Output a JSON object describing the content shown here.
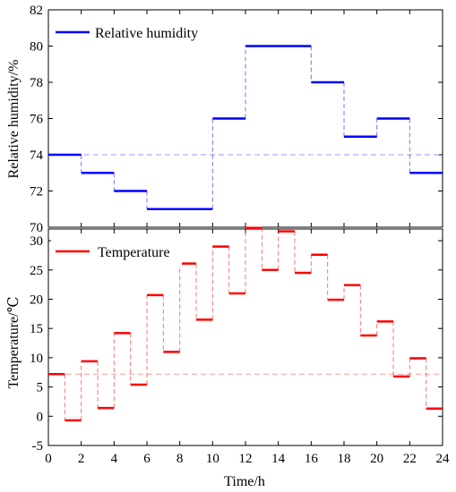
{
  "chart_data": [
    {
      "type": "line",
      "step": true,
      "ylabel": "Relative humidity/%",
      "xlim": [
        0,
        24
      ],
      "ylim": [
        70,
        82
      ],
      "yticks": [
        70,
        72,
        74,
        76,
        78,
        80,
        82
      ],
      "grid": false,
      "legend_position": "top-left",
      "series": [
        {
          "name": "Relative humidity",
          "color": "#0000ff",
          "segments": [
            {
              "x0": 0,
              "x1": 2,
              "y": 74
            },
            {
              "x0": 2,
              "x1": 4,
              "y": 73
            },
            {
              "x0": 4,
              "x1": 6,
              "y": 72
            },
            {
              "x0": 6,
              "x1": 10,
              "y": 71
            },
            {
              "x0": 10,
              "x1": 12,
              "y": 76
            },
            {
              "x0": 12,
              "x1": 16,
              "y": 80
            },
            {
              "x0": 16,
              "x1": 18,
              "y": 78
            },
            {
              "x0": 18,
              "x1": 20,
              "y": 75
            },
            {
              "x0": 20,
              "x1": 22,
              "y": 76
            },
            {
              "x0": 22,
              "x1": 24,
              "y": 73
            }
          ]
        }
      ],
      "reference_line": {
        "y": 74,
        "color": "#9999ff",
        "style": "dashed"
      }
    },
    {
      "type": "line",
      "step": true,
      "xlabel": "Time/h",
      "ylabel": "Temperature/℃",
      "xlim": [
        0,
        24
      ],
      "ylim": [
        -5,
        32
      ],
      "xticks": [
        0,
        2,
        4,
        6,
        8,
        10,
        12,
        14,
        16,
        18,
        20,
        22,
        24
      ],
      "yticks": [
        -5,
        0,
        5,
        10,
        15,
        20,
        25,
        30
      ],
      "grid": false,
      "legend_position": "top-left",
      "series": [
        {
          "name": "Temperature",
          "color": "#ff0000",
          "segments": [
            {
              "x0": 0,
              "x1": 1,
              "y": 7.2
            },
            {
              "x0": 1,
              "x1": 2,
              "y": -0.7
            },
            {
              "x0": 2,
              "x1": 3,
              "y": 9.4
            },
            {
              "x0": 3,
              "x1": 4,
              "y": 1.4
            },
            {
              "x0": 4,
              "x1": 5,
              "y": 14.2
            },
            {
              "x0": 5,
              "x1": 6,
              "y": 5.4
            },
            {
              "x0": 6,
              "x1": 7,
              "y": 20.7
            },
            {
              "x0": 7,
              "x1": 8,
              "y": 11.0
            },
            {
              "x0": 8,
              "x1": 9,
              "y": 26.1
            },
            {
              "x0": 9,
              "x1": 10,
              "y": 16.5
            },
            {
              "x0": 10,
              "x1": 11,
              "y": 29.0
            },
            {
              "x0": 11,
              "x1": 12,
              "y": 21.0
            },
            {
              "x0": 12,
              "x1": 13,
              "y": 32.2
            },
            {
              "x0": 13,
              "x1": 14,
              "y": 25.0
            },
            {
              "x0": 14,
              "x1": 15,
              "y": 31.6
            },
            {
              "x0": 15,
              "x1": 16,
              "y": 24.5
            },
            {
              "x0": 16,
              "x1": 17,
              "y": 27.6
            },
            {
              "x0": 17,
              "x1": 18,
              "y": 19.9
            },
            {
              "x0": 18,
              "x1": 19,
              "y": 22.4
            },
            {
              "x0": 19,
              "x1": 20,
              "y": 13.8
            },
            {
              "x0": 20,
              "x1": 21,
              "y": 16.2
            },
            {
              "x0": 21,
              "x1": 22,
              "y": 6.8
            },
            {
              "x0": 22,
              "x1": 23,
              "y": 9.9
            },
            {
              "x0": 23,
              "x1": 24,
              "y": 1.3
            }
          ]
        }
      ],
      "reference_line": {
        "y": 7.2,
        "color": "#ff9999",
        "style": "dashed"
      }
    }
  ]
}
